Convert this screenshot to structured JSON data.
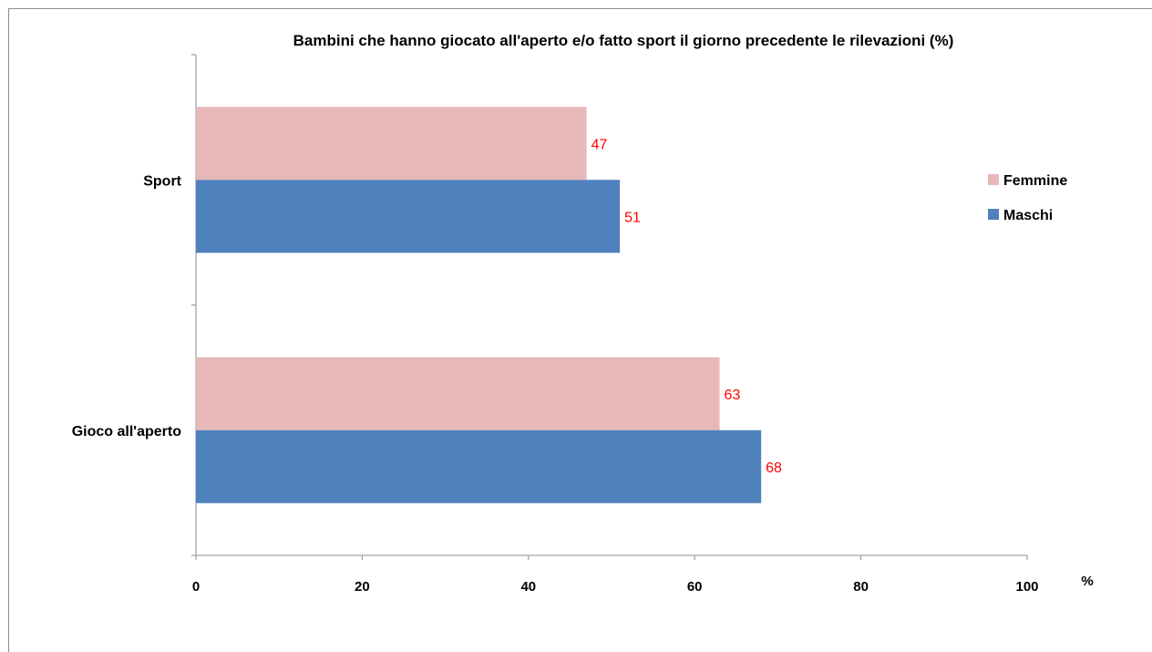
{
  "chart_data": {
    "type": "bar",
    "orientation": "horizontal",
    "title": "Bambini  che hanno giocato all'aperto e/o fatto sport il giorno precedente le rilevazioni (%)",
    "xlabel": "%",
    "ylabel": "",
    "categories": [
      "Sport",
      "Gioco all'aperto"
    ],
    "series": [
      {
        "name": "Femmine",
        "values": [
          47,
          63
        ],
        "color": "#e6b9b8"
      },
      {
        "name": "Maschi",
        "values": [
          51,
          68
        ],
        "color": "#4f81bd"
      }
    ],
    "xlim": [
      0,
      100
    ],
    "xticks": [
      "0",
      "20",
      "40",
      "60",
      "80",
      "100"
    ],
    "data_label_color": "#ff0000",
    "legend_position": "right",
    "grid": false
  }
}
